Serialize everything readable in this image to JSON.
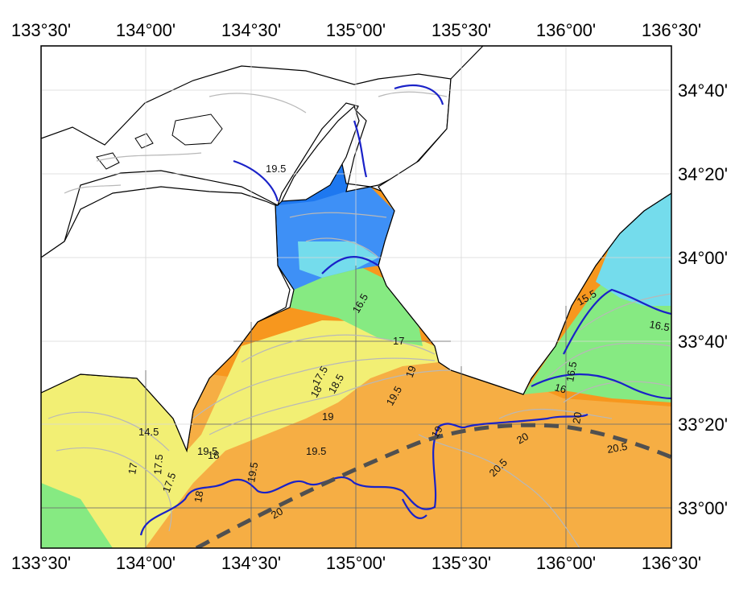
{
  "map": {
    "longitude_ticks": [
      "133°30'",
      "134°00'",
      "134°30'",
      "135°00'",
      "135°30'",
      "136°00'",
      "136°30'"
    ],
    "latitude_ticks": [
      "34°40'",
      "34°20'",
      "34°00'",
      "33°40'",
      "33°20'",
      "33°00'"
    ],
    "contour_labels": [
      "19.5",
      "16.5",
      "17",
      "17.5",
      "18",
      "18.5",
      "19",
      "19.5",
      "19.5",
      "19.5",
      "19",
      "19",
      "20",
      "20",
      "20",
      "20.5",
      "20.5",
      "16",
      "16.5",
      "16.5",
      "15.5",
      "14.5",
      "17",
      "17.5",
      "17.5",
      "18",
      "19.5",
      "18",
      "18.5",
      "19.5"
    ],
    "colors": {
      "land": "#ffffff",
      "coastline": "#000000",
      "grid": "#d8d8d8",
      "frame": "#000000",
      "contour_thin": "#b8b8b8",
      "contour_major": "#1a22c8",
      "current_axis": "#505050",
      "water_cold": "#1e78f0",
      "water_mid_blue": "#3e90f6",
      "water_cyan": "#74dcec",
      "water_green": "#86ea82",
      "water_yellow": "#f2ef74",
      "water_orange": "#f6ae44",
      "water_dark_orange": "#f7971e"
    }
  }
}
